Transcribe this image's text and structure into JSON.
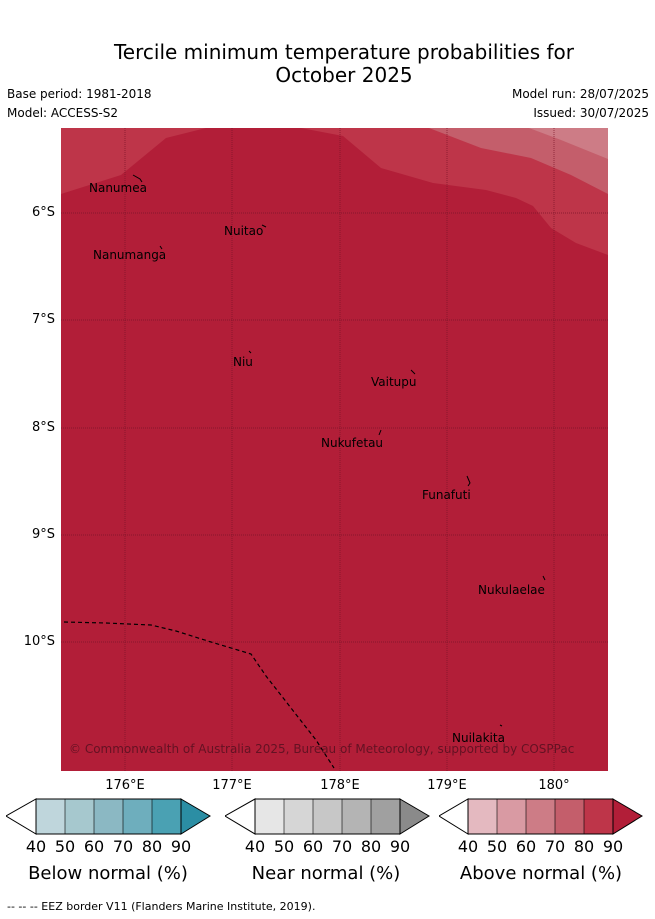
{
  "title_line1": "Tercile minimum temperature probabilities for",
  "title_line2": "October 2025",
  "base_period": "Base period: 1981-2018",
  "model": "Model: ACCESS-S2",
  "model_run": "Model run: 28/07/2025",
  "issued": "Issued: 30/07/2025",
  "lat_labels": [
    "6°S",
    "7°S",
    "8°S",
    "9°S",
    "10°S"
  ],
  "lon_labels": [
    "176°E",
    "177°E",
    "178°E",
    "179°E",
    "180°"
  ],
  "places": {
    "nanumea": "Nanumea",
    "nuitao": "Nuitao",
    "nanumanga": "Nanumanga",
    "niu": "Niu",
    "vaitupu": "Vaitupu",
    "nukufetau": "Nukufetau",
    "funafuti": "Funafuti",
    "nukulaelae": "Nukulaelae",
    "nuilakita": "Nuilakita"
  },
  "copyright": "© Commonwealth of Australia 2025, Bureau of Meteorology, supported by COSPPac",
  "colorbars": [
    {
      "label": "Below normal (%)",
      "ticks": [
        "40",
        "50",
        "60",
        "70",
        "80",
        "90"
      ],
      "colors": [
        "#bfd6dc",
        "#a6c8ce",
        "#8bb8c3",
        "#6eaebd",
        "#4aa1b3",
        "#2b8ea4"
      ]
    },
    {
      "label": "Near normal (%)",
      "ticks": [
        "40",
        "50",
        "60",
        "70",
        "80",
        "90"
      ],
      "colors": [
        "#e6e6e6",
        "#d6d6d6",
        "#c7c7c7",
        "#b4b4b4",
        "#a0a0a0",
        "#8a8a8a"
      ]
    },
    {
      "label": "Above normal (%)",
      "ticks": [
        "40",
        "50",
        "60",
        "70",
        "80",
        "90"
      ],
      "colors": [
        "#e4b9c0",
        "#d99aa3",
        "#cd7c86",
        "#c45e6b",
        "#be3549",
        "#b21e38"
      ]
    }
  ],
  "map_colors": {
    "above_90": "#b21e38",
    "above_80": "#be3549",
    "above_70": "#c45e6b",
    "above_60": "#cd7c86"
  },
  "footer": "-- -- -- EEZ border V11 (Flanders Marine Institute, 2019)."
}
